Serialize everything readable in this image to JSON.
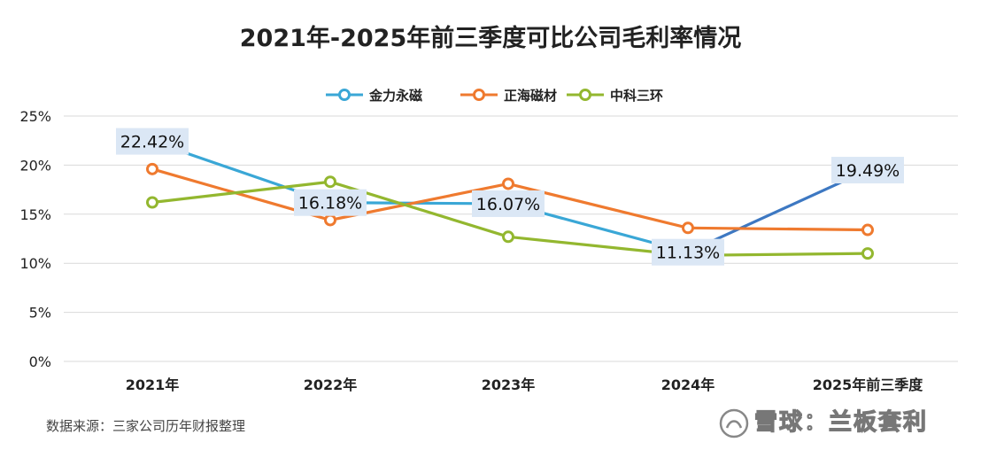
{
  "colors": {
    "金力永磁": "#3aa7d6",
    "金力永磁_last_segment": "#3d78c2",
    "正海磁材": "#ef7a2f",
    "中科三环": "#93b72f",
    "grid": "#d9d9d9",
    "label_box": "#dbe7f5"
  },
  "source": "数据来源：三家公司历年财报整理",
  "watermark": "雪球：兰板套利",
  "chart_data": {
    "type": "line",
    "title": "2021年-2025年前三季度可比公司毛利率情况",
    "categories": [
      "2021年",
      "2022年",
      "2023年",
      "2024年",
      "2025年前三季度"
    ],
    "y_ticks": [
      "0%",
      "5%",
      "10%",
      "15%",
      "20%",
      "25%"
    ],
    "ylim": [
      0,
      25
    ],
    "grid": true,
    "legend_position": "top-center",
    "series": [
      {
        "name": "金力永磁",
        "values": [
          22.42,
          16.18,
          16.07,
          11.13,
          19.49
        ],
        "labels": [
          "22.42%",
          "16.18%",
          "16.07%",
          "11.13%",
          "19.49%"
        ],
        "markers": false
      },
      {
        "name": "正海磁材",
        "values": [
          19.6,
          14.4,
          18.1,
          13.6,
          13.4
        ],
        "markers": true
      },
      {
        "name": "中科三环",
        "values": [
          16.2,
          18.3,
          12.7,
          10.8,
          11.0
        ],
        "markers": true
      }
    ]
  }
}
